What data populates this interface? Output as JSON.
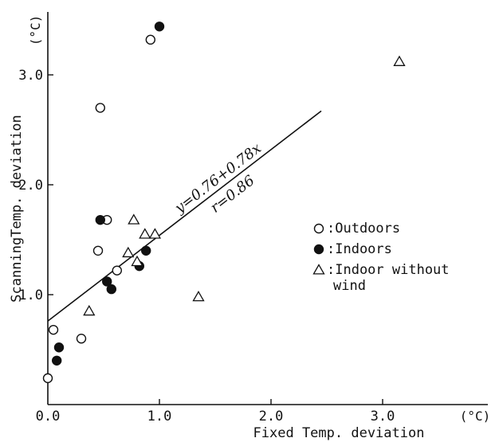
{
  "chart_data": {
    "type": "scatter",
    "xlabel": "Fixed Temp. deviation",
    "ylabel": "ScanningTemp. deviation",
    "x_unit": "(°C)",
    "y_unit": "(°C)",
    "xlim": [
      0,
      4.0
    ],
    "ylim": [
      0,
      3.5
    ],
    "x_ticks": [
      "0.0",
      "1.0",
      "2.0",
      "3.0"
    ],
    "y_ticks": [
      "1.0",
      "2.0",
      "3.0"
    ],
    "grid": false,
    "legend_position": "right",
    "series": [
      {
        "name": ":Outdoors",
        "marker": "open-circle",
        "points": [
          {
            "x": 0.0,
            "y": 0.24
          },
          {
            "x": 0.05,
            "y": 0.68
          },
          {
            "x": 0.3,
            "y": 0.6
          },
          {
            "x": 0.45,
            "y": 1.4
          },
          {
            "x": 0.47,
            "y": 2.7
          },
          {
            "x": 0.53,
            "y": 1.68
          },
          {
            "x": 0.62,
            "y": 1.22
          },
          {
            "x": 0.92,
            "y": 3.32
          }
        ]
      },
      {
        "name": ":Indoors",
        "marker": "filled-circle",
        "points": [
          {
            "x": 0.08,
            "y": 0.4
          },
          {
            "x": 0.1,
            "y": 0.52
          },
          {
            "x": 0.47,
            "y": 1.68
          },
          {
            "x": 0.53,
            "y": 1.12
          },
          {
            "x": 0.57,
            "y": 1.05
          },
          {
            "x": 0.82,
            "y": 1.26
          },
          {
            "x": 0.88,
            "y": 1.4
          },
          {
            "x": 1.0,
            "y": 3.44
          }
        ]
      },
      {
        "name": ":Indoor without wind",
        "legend_lines": [
          ":Indoor without",
          "wind"
        ],
        "marker": "open-triangle",
        "points": [
          {
            "x": 0.37,
            "y": 0.85
          },
          {
            "x": 0.72,
            "y": 1.38
          },
          {
            "x": 0.77,
            "y": 1.68
          },
          {
            "x": 0.8,
            "y": 1.3
          },
          {
            "x": 0.87,
            "y": 1.55
          },
          {
            "x": 0.96,
            "y": 1.55
          },
          {
            "x": 1.35,
            "y": 0.98
          },
          {
            "x": 3.15,
            "y": 3.12
          }
        ]
      }
    ],
    "regression": {
      "equation": "y=0.76+0.78x",
      "r_label": "r=0.86",
      "intercept": 0.76,
      "slope": 0.78,
      "x_range": [
        0.0,
        2.45
      ]
    }
  }
}
